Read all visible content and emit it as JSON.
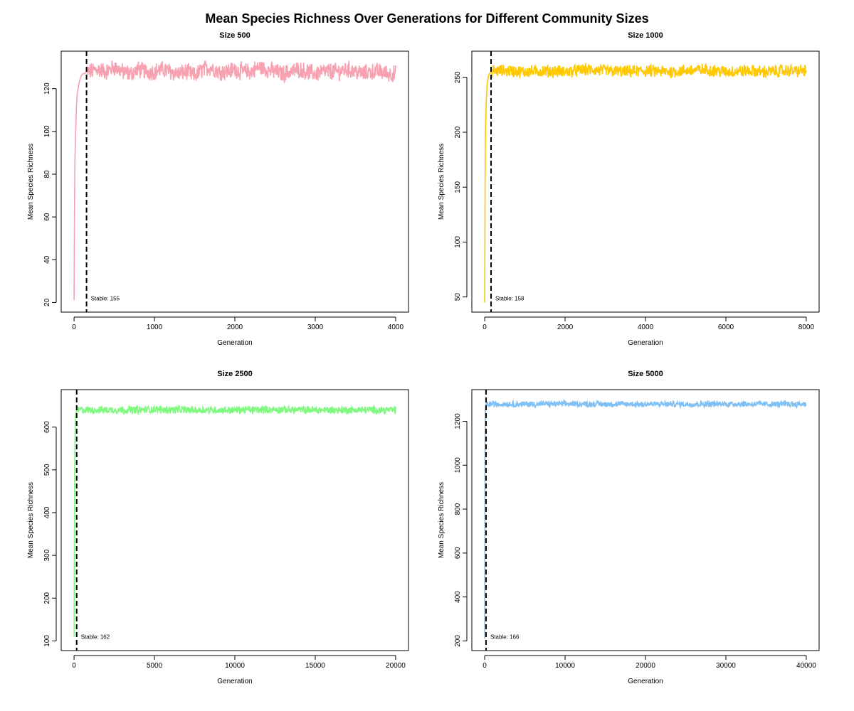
{
  "title": "Mean Species Richness Over Generations for Different Community Sizes",
  "chart_data": [
    {
      "type": "line",
      "title": "Size 500",
      "xlabel": "Generation",
      "ylabel": "Mean Species Richness",
      "xlim": [
        0,
        4000
      ],
      "ylim": [
        20,
        133
      ],
      "xticks": [
        0,
        1000,
        2000,
        3000,
        4000
      ],
      "yticks": [
        20,
        40,
        60,
        80,
        100,
        120
      ],
      "color": "#F8A1B1",
      "stable_generation": 155,
      "stable_label": "Stable: 155",
      "series": [
        {
          "x": [
            0,
            5,
            10,
            20,
            30,
            40,
            55,
            70,
            90,
            110,
            130,
            155,
            200,
            300,
            400,
            500,
            600,
            700,
            800,
            900,
            1000,
            1100,
            1200,
            1300,
            1400,
            1500,
            1600,
            1700,
            1800,
            1900,
            2000,
            2100,
            2200,
            2300,
            2400,
            2500,
            2600,
            2700,
            2800,
            2900,
            3000,
            3100,
            3200,
            3300,
            3400,
            3500,
            3600,
            3700,
            3800,
            3900,
            4000
          ],
          "y": [
            21,
            60,
            85,
            100,
            112,
            118,
            121,
            124,
            126,
            127,
            127,
            128,
            128,
            129,
            128,
            130,
            128,
            127,
            129,
            128,
            128,
            129,
            128,
            127,
            128,
            126,
            129,
            130,
            128,
            128,
            129,
            128,
            128,
            130,
            129,
            128,
            127,
            128,
            129,
            128,
            127,
            128,
            128,
            128,
            129,
            128,
            127,
            128,
            128,
            127,
            127
          ],
          "band": 3.5
        }
      ]
    },
    {
      "type": "line",
      "title": "Size 1000",
      "xlabel": "Generation",
      "ylabel": "Mean Species Richness",
      "xlim": [
        0,
        8000
      ],
      "ylim": [
        45,
        265
      ],
      "xticks": [
        0,
        2000,
        4000,
        6000,
        8000
      ],
      "yticks": [
        50,
        100,
        150,
        200,
        250
      ],
      "color": "#FFC800",
      "stable_generation": 158,
      "stable_label": "Stable: 158",
      "series": [
        {
          "x": [
            0,
            10,
            20,
            40,
            60,
            80,
            110,
            158,
            250,
            500,
            1000,
            1500,
            2000,
            2500,
            3000,
            3500,
            4000,
            4500,
            5000,
            5500,
            6000,
            6500,
            7000,
            7500,
            8000
          ],
          "y": [
            45,
            150,
            200,
            230,
            243,
            249,
            253,
            255,
            256,
            256,
            255,
            256,
            255,
            257,
            256,
            255,
            256,
            255,
            256,
            257,
            255,
            256,
            255,
            256,
            256
          ],
          "band": 5
        }
      ]
    },
    {
      "type": "line",
      "title": "Size 2500",
      "xlabel": "Generation",
      "ylabel": "Mean Species Richness",
      "xlim": [
        0,
        20000
      ],
      "ylim": [
        100,
        665
      ],
      "xticks": [
        0,
        5000,
        10000,
        15000,
        20000
      ],
      "yticks": [
        100,
        200,
        300,
        400,
        500,
        600
      ],
      "color": "#7DFA7D",
      "stable_generation": 162,
      "stable_label": "Stable: 162",
      "series": [
        {
          "x": [
            0,
            20,
            40,
            70,
            100,
            130,
            162,
            300,
            1000,
            2500,
            5000,
            7500,
            10000,
            12500,
            15000,
            17500,
            20000
          ],
          "y": [
            110,
            350,
            520,
            600,
            628,
            636,
            639,
            640,
            640,
            640,
            641,
            640,
            640,
            641,
            640,
            640,
            640
          ],
          "band": 8
        }
      ]
    },
    {
      "type": "line",
      "title": "Size 5000",
      "xlabel": "Generation",
      "ylabel": "Mean Species Richness",
      "xlim": [
        0,
        40000
      ],
      "ylim": [
        200,
        1300
      ],
      "xticks": [
        0,
        10000,
        20000,
        30000,
        40000
      ],
      "yticks": [
        200,
        400,
        600,
        800,
        1000,
        1200
      ],
      "color": "#7EC0F5",
      "stable_generation": 166,
      "stable_label": "Stable: 166",
      "series": [
        {
          "x": [
            0,
            20,
            40,
            70,
            100,
            130,
            166,
            400,
            2000,
            5000,
            10000,
            15000,
            20000,
            25000,
            30000,
            35000,
            40000
          ],
          "y": [
            210,
            700,
            1050,
            1200,
            1250,
            1268,
            1276,
            1278,
            1278,
            1278,
            1279,
            1278,
            1278,
            1278,
            1279,
            1278,
            1278
          ],
          "band": 12
        }
      ]
    }
  ]
}
